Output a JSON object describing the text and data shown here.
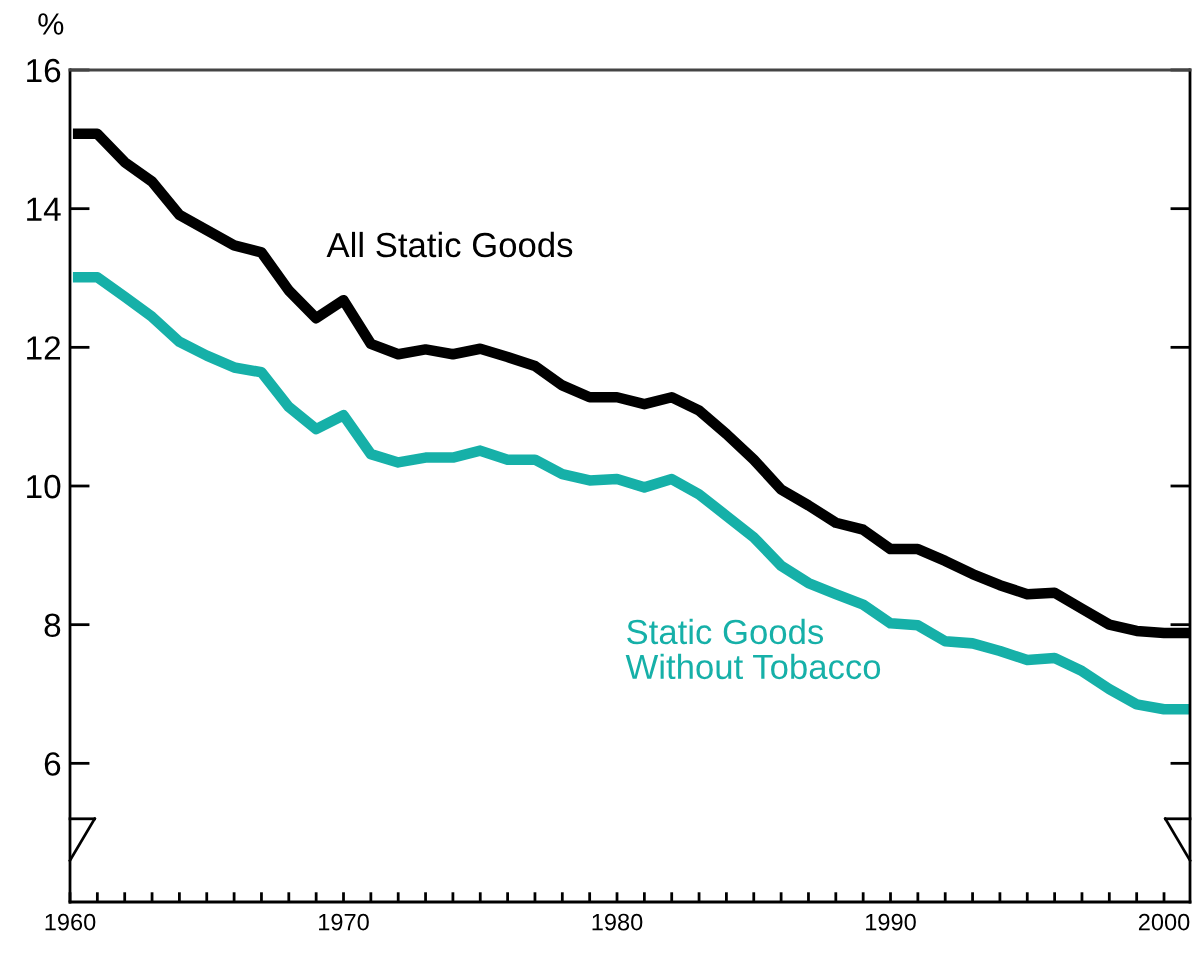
{
  "chart_data": {
    "type": "line",
    "ylabel": "%",
    "x": [
      1960.3,
      1961,
      1962,
      1963,
      1964,
      1965,
      1966,
      1967,
      1968,
      1969,
      1970,
      1971,
      1972,
      1973,
      1974,
      1975,
      1976,
      1977,
      1978,
      1979,
      1980,
      1981,
      1982,
      1983,
      1984,
      1985,
      1986,
      1987,
      1988,
      1989,
      1990,
      1991,
      1992,
      1993,
      1994,
      1995,
      1996,
      1997,
      1998,
      1999,
      2000,
      2000.8
    ],
    "series": [
      {
        "name": "All Static Goods",
        "color": "#000000",
        "values": [
          15.08,
          15.08,
          14.67,
          14.39,
          13.91,
          13.69,
          13.47,
          13.37,
          12.82,
          12.42,
          12.68,
          12.05,
          11.9,
          11.97,
          11.9,
          11.98,
          11.86,
          11.73,
          11.45,
          11.28,
          11.28,
          11.18,
          11.28,
          11.09,
          10.75,
          10.38,
          9.95,
          9.72,
          9.47,
          9.37,
          9.09,
          9.09,
          8.92,
          8.73,
          8.57,
          8.44,
          8.46,
          8.23,
          8.0,
          7.91,
          7.88,
          7.88
        ]
      },
      {
        "name": "Static Goods\nWithout Tobacco",
        "color": "#16b0a8",
        "values": [
          13.01,
          13.01,
          12.73,
          12.44,
          12.08,
          11.88,
          11.71,
          11.64,
          11.14,
          10.82,
          11.02,
          10.46,
          10.34,
          10.41,
          10.41,
          10.51,
          10.38,
          10.38,
          10.17,
          10.08,
          10.1,
          9.98,
          10.1,
          9.88,
          9.57,
          9.26,
          8.85,
          8.6,
          8.44,
          8.29,
          8.02,
          7.99,
          7.76,
          7.73,
          7.62,
          7.49,
          7.52,
          7.33,
          7.07,
          6.85,
          6.78,
          6.78
        ]
      }
    ],
    "xlim": [
      1960,
      2000.95
    ],
    "ylim": [
      4,
      16
    ],
    "xticks": [
      1960,
      {
        "value": 1961,
        "label": null
      },
      {
        "value": 1962,
        "label": null
      },
      {
        "value": 1963,
        "label": null
      },
      {
        "value": 1964,
        "label": null
      },
      {
        "value": 1965,
        "label": null
      },
      {
        "value": 1966,
        "label": null
      },
      {
        "value": 1967,
        "label": null
      },
      {
        "value": 1968,
        "label": null
      },
      {
        "value": 1969,
        "label": null
      },
      1970,
      {
        "value": 1971,
        "label": null
      },
      {
        "value": 1972,
        "label": null
      },
      {
        "value": 1973,
        "label": null
      },
      {
        "value": 1974,
        "label": null
      },
      {
        "value": 1975,
        "label": null
      },
      {
        "value": 1976,
        "label": null
      },
      {
        "value": 1977,
        "label": null
      },
      {
        "value": 1978,
        "label": null
      },
      {
        "value": 1979,
        "label": null
      },
      1980,
      {
        "value": 1981,
        "label": null
      },
      {
        "value": 1982,
        "label": null
      },
      {
        "value": 1983,
        "label": null
      },
      {
        "value": 1984,
        "label": null
      },
      {
        "value": 1985,
        "label": null
      },
      {
        "value": 1986,
        "label": null
      },
      {
        "value": 1987,
        "label": null
      },
      {
        "value": 1988,
        "label": null
      },
      {
        "value": 1989,
        "label": null
      },
      1990,
      {
        "value": 1991,
        "label": null
      },
      {
        "value": 1992,
        "label": null
      },
      {
        "value": 1993,
        "label": null
      },
      {
        "value": 1994,
        "label": null
      },
      {
        "value": 1995,
        "label": null
      },
      {
        "value": 1996,
        "label": null
      },
      {
        "value": 1997,
        "label": null
      },
      {
        "value": 1998,
        "label": null
      },
      {
        "value": 1999,
        "label": null
      },
      2000
    ],
    "yticks": [
      6,
      8,
      10,
      12,
      14,
      16
    ],
    "grid": false,
    "legend": false,
    "marker": "none",
    "line_style": "solid"
  }
}
